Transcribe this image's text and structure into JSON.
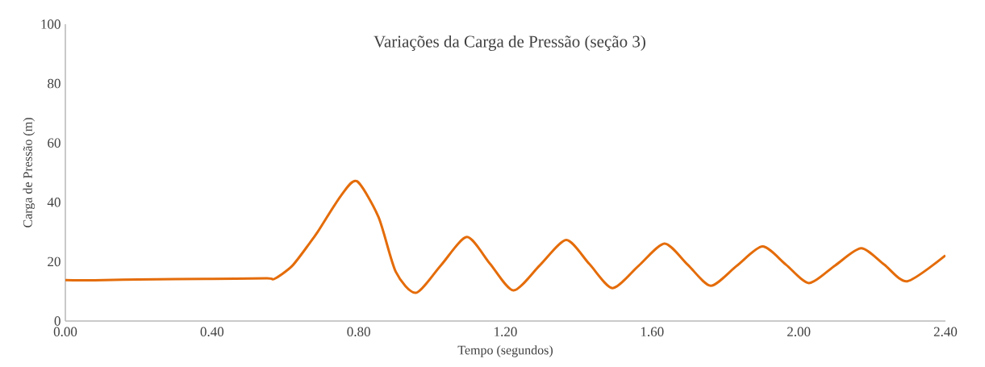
{
  "chart_data": {
    "type": "line",
    "title": "Variações da Carga de Pressão (seção 3)",
    "xlabel": "Tempo (segundos)",
    "ylabel": "Carga de Pressão (m)",
    "color": "#e46c0a",
    "x": [
      0,
      0.08,
      0.2,
      0.4,
      0.55,
      0.57,
      0.618,
      0.666,
      0.689,
      0.752,
      0.795,
      0.854,
      0.901,
      0.956,
      1.025,
      1.095,
      1.158,
      1.222,
      1.294,
      1.366,
      1.429,
      1.492,
      1.563,
      1.634,
      1.697,
      1.76,
      1.83,
      1.901,
      1.965,
      2.028,
      2.099,
      2.17,
      2.233,
      2.296,
      2.4
    ],
    "values": [
      13.8,
      13.7,
      14.0,
      14.2,
      14.4,
      14.2,
      18.5,
      26.2,
      30.2,
      42.3,
      47.1,
      35.0,
      16.6,
      9.5,
      18.9,
      28.3,
      19.3,
      10.3,
      18.8,
      27.3,
      19.2,
      11.1,
      18.6,
      26.1,
      19.0,
      11.9,
      18.5,
      25.1,
      19.0,
      12.8,
      18.7,
      24.5,
      19.0,
      13.4,
      22.1
    ],
    "xlim": [
      0,
      2.4
    ],
    "ylim": [
      0,
      100
    ],
    "xticks": [
      {
        "value": 0,
        "label": "0.00"
      },
      {
        "value": 0.4,
        "label": "0.40"
      },
      {
        "value": 0.8,
        "label": "0.80"
      },
      {
        "value": 1.2,
        "label": "1.20"
      },
      {
        "value": 1.6,
        "label": "1.60"
      },
      {
        "value": 2.0,
        "label": "2.00"
      },
      {
        "value": 2.4,
        "label": "2.40"
      }
    ],
    "yticks": [
      0,
      20,
      40,
      60,
      80,
      100
    ]
  }
}
